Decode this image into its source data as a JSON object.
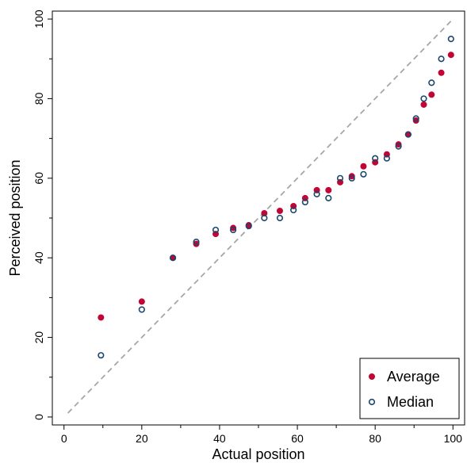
{
  "chart_data": {
    "type": "scatter",
    "title": "",
    "xlabel": "Actual position",
    "ylabel": "Perceived position",
    "xlim": [
      -3,
      103
    ],
    "ylim": [
      -2,
      102
    ],
    "xticks": [
      0,
      20,
      40,
      60,
      80,
      100
    ],
    "yticks": [
      0,
      20,
      40,
      60,
      80,
      100
    ],
    "reference_line": {
      "x": [
        1,
        100
      ],
      "y": [
        1,
        100
      ],
      "style": "dashed",
      "color": "#a6a6a6"
    },
    "grid": false,
    "legend_position": "bottom-right",
    "series": [
      {
        "name": "Average",
        "marker": "filled-circle",
        "color": "#c10534",
        "points": [
          [
            9.5,
            25
          ],
          [
            20,
            29
          ],
          [
            28,
            40
          ],
          [
            34,
            43.5
          ],
          [
            39,
            46
          ],
          [
            43.5,
            47.5
          ],
          [
            47.5,
            48.2
          ],
          [
            51.5,
            51.2
          ],
          [
            55.5,
            51.8
          ],
          [
            59,
            53
          ],
          [
            62,
            55
          ],
          [
            65,
            57
          ],
          [
            68,
            57
          ],
          [
            71,
            59
          ],
          [
            74,
            60.5
          ],
          [
            77,
            63
          ],
          [
            80,
            64
          ],
          [
            83,
            66
          ],
          [
            86,
            68.5
          ],
          [
            88.5,
            71
          ],
          [
            90.5,
            74.5
          ],
          [
            92.5,
            78.5
          ],
          [
            94.5,
            81
          ],
          [
            97,
            86.5
          ],
          [
            99.5,
            91
          ]
        ]
      },
      {
        "name": "Median",
        "marker": "hollow-circle",
        "color": "#1a476f",
        "points": [
          [
            9.5,
            15.5
          ],
          [
            20,
            27
          ],
          [
            28,
            40
          ],
          [
            34,
            44
          ],
          [
            39,
            47
          ],
          [
            43.5,
            47
          ],
          [
            47.5,
            48
          ],
          [
            51.5,
            50
          ],
          [
            55.5,
            50
          ],
          [
            59,
            52
          ],
          [
            62,
            54
          ],
          [
            65,
            56
          ],
          [
            68,
            55
          ],
          [
            71,
            60
          ],
          [
            74,
            60
          ],
          [
            77,
            61
          ],
          [
            80,
            65
          ],
          [
            83,
            65
          ],
          [
            86,
            68
          ],
          [
            88.5,
            71
          ],
          [
            90.5,
            75
          ],
          [
            92.5,
            80
          ],
          [
            94.5,
            84
          ],
          [
            97,
            90
          ],
          [
            99.5,
            95
          ]
        ]
      }
    ]
  }
}
